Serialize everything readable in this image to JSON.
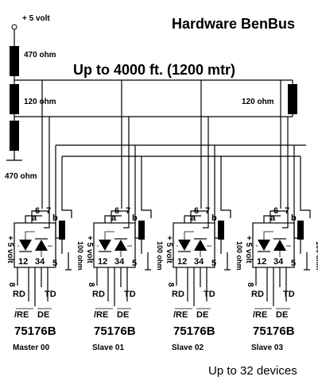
{
  "title": "Hardware BenBus",
  "header_note": "Up to 4000 ft. (1200 mtr)",
  "footer_note": "Up to 32 devices",
  "supply": {
    "label": "+ 5 volt",
    "pullup": "470 ohm",
    "terminator_left": "120 ohm",
    "terminator_right": "120 ohm",
    "pulldown": "470 ohm"
  },
  "device_labels": {
    "supply": "+ 5 volt",
    "res": "100 ohm",
    "pin_a": "a",
    "pin_b": "b",
    "pin_6": "6",
    "pin_7": "7",
    "pin_5": "5",
    "pins_left": "12",
    "pins_right": "34",
    "pin_8": "8",
    "rd": "RD",
    "td": "TD",
    "re": "/RE",
    "de": "DE",
    "chip": "75176B"
  },
  "devices": [
    {
      "name": "Master 00"
    },
    {
      "name": "Slave 01"
    },
    {
      "name": "Slave 02"
    },
    {
      "name": "Slave 03"
    }
  ]
}
